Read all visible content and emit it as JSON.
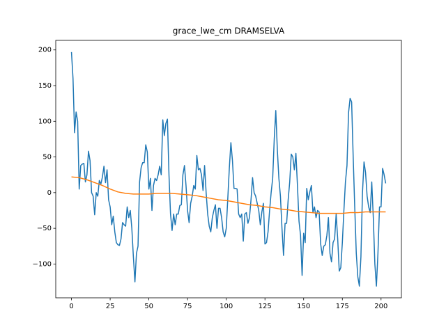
{
  "chart_data": {
    "type": "line",
    "title": "grace_lwe_cm DRAMSELVA",
    "xlim": [
      -10.15,
      213.15
    ],
    "ylim": [
      -147.4,
      213.4
    ],
    "xticks": [
      0,
      25,
      50,
      75,
      100,
      125,
      150,
      175,
      200
    ],
    "yticks": [
      {
        "value": -100,
        "label": "−100"
      },
      {
        "value": -50,
        "label": "−50"
      },
      0,
      50,
      100,
      150,
      200
    ],
    "series": [
      {
        "color": "#1f77b4",
        "x": [
          0,
          1,
          2,
          3,
          4,
          5,
          6,
          7,
          8,
          9,
          10,
          11,
          12,
          13,
          14,
          15,
          16,
          17,
          18,
          19,
          20,
          21,
          22,
          23,
          24,
          25,
          26,
          27,
          28,
          29,
          30,
          31,
          32,
          33,
          34,
          35,
          36,
          37,
          38,
          39,
          40,
          41,
          42,
          43,
          44,
          45,
          46,
          47,
          48,
          49,
          50,
          51,
          52,
          53,
          54,
          55,
          56,
          57,
          58,
          59,
          60,
          61,
          62,
          63,
          64,
          65,
          66,
          67,
          68,
          69,
          70,
          71,
          72,
          73,
          74,
          75,
          76,
          77,
          78,
          79,
          80,
          81,
          82,
          83,
          84,
          85,
          86,
          87,
          88,
          89,
          90,
          91,
          92,
          93,
          94,
          95,
          96,
          97,
          98,
          99,
          100,
          101,
          102,
          103,
          104,
          105,
          106,
          107,
          108,
          109,
          110,
          111,
          112,
          113,
          114,
          115,
          116,
          117,
          118,
          119,
          120,
          121,
          122,
          123,
          124,
          125,
          126,
          127,
          128,
          129,
          130,
          131,
          132,
          133,
          134,
          135,
          136,
          137,
          138,
          139,
          140,
          141,
          142,
          143,
          144,
          145,
          146,
          147,
          148,
          149,
          150,
          151,
          152,
          153,
          154,
          155,
          156,
          157,
          158,
          159,
          160,
          161,
          162,
          163,
          164,
          165,
          166,
          167,
          168,
          169,
          170,
          171,
          172,
          173,
          174,
          175,
          176,
          177,
          178,
          179,
          180,
          181,
          182,
          183,
          184,
          185,
          186,
          187,
          188,
          189,
          190,
          191,
          192,
          193,
          194,
          195,
          196,
          197,
          198,
          199,
          200,
          201,
          202,
          203
        ],
        "values": [
          197,
          160,
          84,
          113,
          100,
          5,
          38,
          40,
          41,
          15,
          25,
          58,
          45,
          0,
          -5,
          -31,
          0,
          -5,
          17,
          12,
          22,
          37,
          14,
          32,
          -10,
          -20,
          -45,
          -33,
          -55,
          -70,
          -73,
          -74,
          -65,
          -42,
          -45,
          -47,
          -20,
          -35,
          -25,
          -50,
          -90,
          -125,
          -85,
          -75,
          15,
          35,
          42,
          42,
          67,
          57,
          5,
          20,
          -25,
          10,
          20,
          17,
          25,
          37,
          25,
          102,
          80,
          97,
          103,
          25,
          -30,
          -53,
          -30,
          -45,
          -30,
          -30,
          -18,
          -17,
          25,
          38,
          10,
          -25,
          -42,
          -15,
          -5,
          10,
          5,
          52,
          32,
          34,
          25,
          3,
          38,
          0,
          -30,
          -47,
          -55,
          -35,
          -25,
          -17,
          -50,
          -22,
          -22,
          -35,
          -55,
          -62,
          -50,
          -8,
          35,
          70,
          45,
          6,
          6,
          5,
          -30,
          -35,
          -30,
          -68,
          -30,
          -28,
          -43,
          -35,
          -10,
          21,
          0,
          -5,
          -15,
          -25,
          -45,
          -27,
          -15,
          -72,
          -70,
          -55,
          -25,
          0,
          20,
          75,
          115,
          60,
          20,
          -5,
          -50,
          -88,
          -43,
          -43,
          -10,
          15,
          54,
          50,
          32,
          55,
          10,
          -40,
          -60,
          -116,
          -57,
          -70,
          6,
          -10,
          1,
          10,
          -28,
          -20,
          -35,
          -25,
          -27,
          -72,
          -88,
          -75,
          -73,
          -60,
          -35,
          -85,
          -97,
          -70,
          -65,
          -30,
          -65,
          -110,
          -105,
          -70,
          -25,
          15,
          38,
          112,
          132,
          127,
          50,
          -20,
          -85,
          -118,
          -131,
          -90,
          0,
          43,
          28,
          -5,
          -20,
          -28,
          15,
          -35,
          -100,
          -131,
          -85,
          -20,
          -20,
          34,
          25,
          13
        ]
      },
      {
        "color": "#ff7f0e",
        "x": [
          0,
          5,
          10,
          15,
          20,
          25,
          30,
          35,
          40,
          45,
          50,
          55,
          60,
          65,
          70,
          75,
          80,
          85,
          90,
          95,
          100,
          105,
          110,
          115,
          120,
          125,
          130,
          135,
          140,
          145,
          150,
          155,
          160,
          165,
          170,
          175,
          180,
          185,
          190,
          195,
          200,
          203
        ],
        "values": [
          22,
          21,
          18,
          14,
          10,
          5,
          1,
          -1,
          -2,
          -2,
          -2,
          -1,
          -1,
          -1,
          -2,
          -3,
          -4,
          -6,
          -8,
          -10,
          -11,
          -13,
          -15,
          -17,
          -18,
          -20,
          -21,
          -23,
          -24,
          -26,
          -27,
          -28,
          -29,
          -29,
          -29,
          -29,
          -28,
          -28,
          -27,
          -27,
          -27,
          -27
        ]
      }
    ]
  }
}
